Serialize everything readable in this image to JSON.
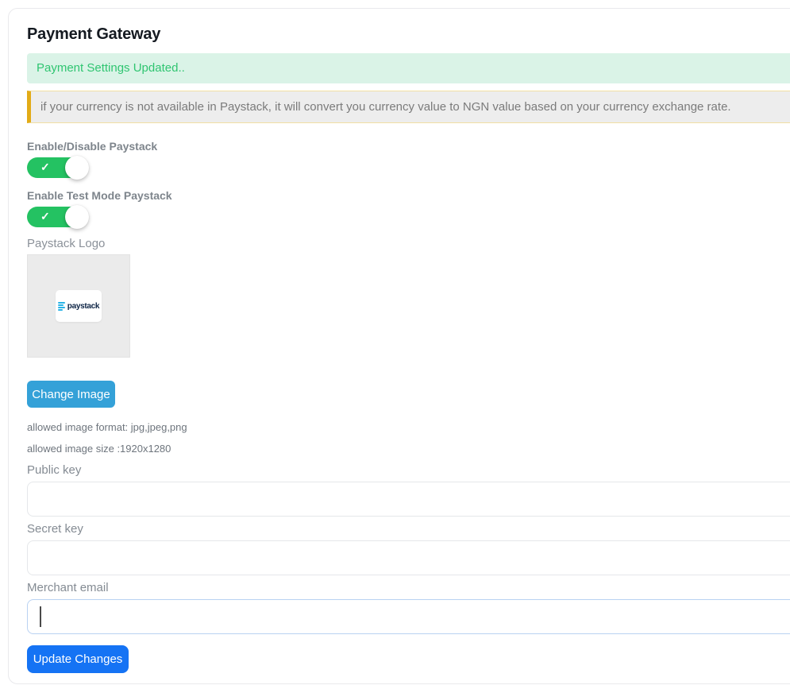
{
  "page": {
    "title": "Payment Gateway"
  },
  "alerts": {
    "success_text": "Payment Settings Updated..",
    "info_text": "if your currency is not available in Paystack, it will convert you currency value to NGN value based on your currency exchange rate."
  },
  "icons": {
    "check": "✓"
  },
  "toggles": [
    {
      "label": "Enable/Disable Paystack",
      "state": "on"
    },
    {
      "label": "Enable Test Mode Paystack",
      "state": "on"
    }
  ],
  "logo": {
    "label": "Paystack Logo",
    "brand_text": "paystack"
  },
  "buttons": {
    "change_image": "Change Image",
    "update_changes": "Update Changes"
  },
  "hints": {
    "format": "allowed image format: jpg,jpeg,png",
    "size": "allowed image size :1920x1280"
  },
  "fields": [
    {
      "label": "Public key",
      "value": "",
      "focused": false
    },
    {
      "label": "Secret key",
      "value": "",
      "focused": false
    },
    {
      "label": "Merchant email",
      "value": "",
      "focused": true
    }
  ],
  "colors": {
    "success_bg": "#daf3e7",
    "success_text": "#2fc571",
    "warning_bg": "#ededed",
    "warning_accent": "#e2ab17",
    "toggle_on": "#24c262",
    "change_image_bg": "#34a1d8",
    "update_changes_bg": "#1573f4",
    "paystack_navy": "#0c2344",
    "paystack_cyan": "#29b3e6"
  }
}
